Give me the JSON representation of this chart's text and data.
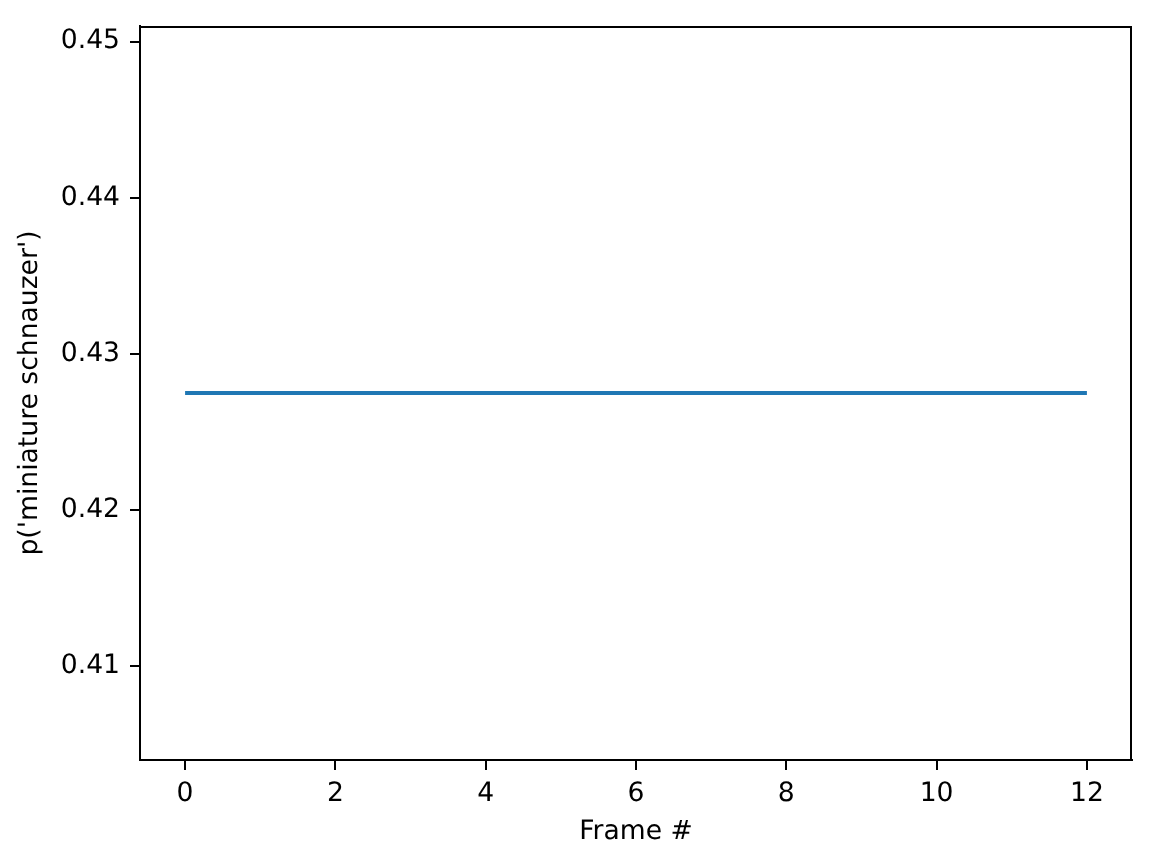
{
  "chart_data": {
    "type": "line",
    "xlabel": "Frame #",
    "ylabel": "p('miniature schnauzer')",
    "x": [
      0,
      12
    ],
    "values": [
      0.4275,
      0.4275
    ],
    "color": "#1f77b4",
    "xlim": [
      -0.6,
      12.6
    ],
    "ylim": [
      0.404,
      0.451
    ],
    "xticks": [
      0,
      2,
      4,
      6,
      8,
      10,
      12
    ],
    "yticks": [
      0.41,
      0.42,
      0.43,
      0.44,
      0.45
    ]
  }
}
